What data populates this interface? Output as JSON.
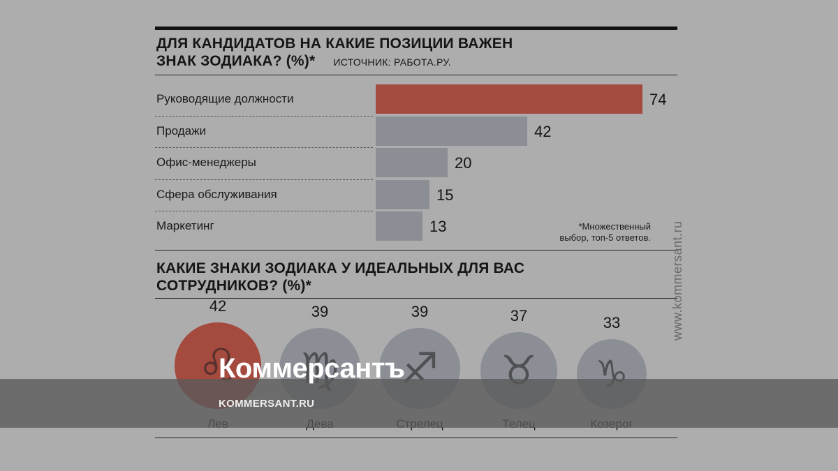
{
  "chart_data": [
    {
      "type": "bar",
      "title": "ДЛЯ КАНДИДАТОВ НА КАКИЕ ПОЗИЦИИ ВАЖЕН ЗНАК ЗОДИАКА? (%)*",
      "source": "ИСТОЧНИК: РАБОТА.РУ.",
      "categories": [
        "Руководящие должности",
        "Продажи",
        "Офис-менеджеры",
        "Сфера обслуживания",
        "Маркетинг"
      ],
      "values": [
        74,
        42,
        20,
        15,
        13
      ],
      "highlight_color": "#a54a3f",
      "bar_color": "#8b8f95",
      "note": "*Множественный выбор, топ-5 ответов."
    },
    {
      "type": "bar",
      "title": "КАКИЕ ЗНАКИ ЗОДИАКА У ИДЕАЛЬНЫХ ДЛЯ ВАС СОТРУДНИКОВ? (%)*",
      "categories": [
        "Лев",
        "Дева",
        "Стрелец",
        "Телец",
        "Козерог"
      ],
      "values": [
        42,
        39,
        39,
        37,
        33
      ],
      "symbols": [
        "♌",
        "♍",
        "♐",
        "♉",
        "♑"
      ],
      "highlight_color": "#a54a3f",
      "bar_color": "#8b8f95"
    }
  ],
  "title1_line1": "ДЛЯ КАНДИДАТОВ НА КАКИЕ ПОЗИЦИИ ВАЖЕН",
  "title1_line2": "ЗНАК ЗОДИАКА? (%)*",
  "source": "ИСТОЧНИК: РАБОТА.РУ.",
  "note_line1": "*Множественный",
  "note_line2": "выбор, топ-5 ответов.",
  "title2_line1": "КАКИЕ ЗНАКИ ЗОДИАКА У ИДЕАЛЬНЫХ ДЛЯ ВАС",
  "title2_line2": "СОТРУДНИКОВ? (%)*",
  "side_watermark": "www.kommersant.ru",
  "brand": "Коммерсантъ",
  "brand_url": "KOMMERSANT.RU"
}
